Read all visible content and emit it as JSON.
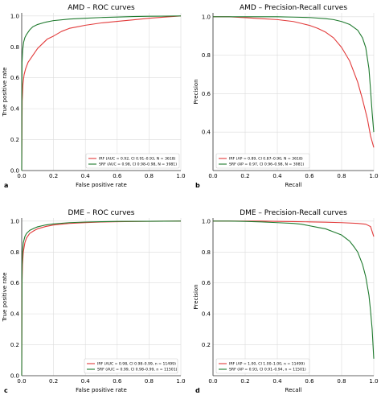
{
  "colors": {
    "red": "#e23b3b",
    "green": "#1f7a2e"
  },
  "chart_data": [
    {
      "panel": "a",
      "type": "line",
      "title": "AMD – ROC curves",
      "xlabel": "False positive rate",
      "ylabel": "True positive rate",
      "xlim": [
        0,
        1
      ],
      "ylim": [
        0,
        1.02
      ],
      "xticks": [
        "0.0",
        "0.2",
        "0.4",
        "0.6",
        "0.8",
        "1.0"
      ],
      "yticks": [
        "0.0",
        "0.2",
        "0.4",
        "0.6",
        "0.8",
        "1.0"
      ],
      "grid": true,
      "legend": "bottom-right",
      "series": [
        {
          "name": "IRF (AUC = 0.92, CI 0.91–0.93, N = 3618)",
          "color": "red",
          "x": [
            0,
            0.003,
            0.008,
            0.015,
            0.025,
            0.04,
            0.06,
            0.08,
            0.1,
            0.13,
            0.16,
            0.2,
            0.25,
            0.3,
            0.35,
            0.4,
            0.5,
            0.6,
            0.7,
            0.8,
            0.9,
            1.0
          ],
          "y": [
            0,
            0.45,
            0.56,
            0.62,
            0.66,
            0.7,
            0.73,
            0.76,
            0.79,
            0.82,
            0.85,
            0.87,
            0.9,
            0.92,
            0.93,
            0.94,
            0.955,
            0.965,
            0.975,
            0.985,
            0.993,
            1.0
          ]
        },
        {
          "name": "SRF (AUC = 0.98, CI 0.98–0.98, N = 3981)",
          "color": "green",
          "x": [
            0,
            0.002,
            0.006,
            0.012,
            0.02,
            0.03,
            0.05,
            0.07,
            0.1,
            0.15,
            0.2,
            0.3,
            0.4,
            0.5,
            0.6,
            0.7,
            0.8,
            0.9,
            1.0
          ],
          "y": [
            0,
            0.7,
            0.78,
            0.83,
            0.86,
            0.88,
            0.91,
            0.93,
            0.945,
            0.96,
            0.97,
            0.98,
            0.985,
            0.99,
            0.993,
            0.996,
            0.998,
            0.999,
            1.0
          ]
        }
      ]
    },
    {
      "panel": "b",
      "type": "line",
      "title": "AMD – Precision-Recall curves",
      "xlabel": "Recall",
      "ylabel": "Precision",
      "xlim": [
        0,
        1
      ],
      "ylim": [
        0.2,
        1.02
      ],
      "xticks": [
        "0.0",
        "0.2",
        "0.4",
        "0.6",
        "0.8",
        "1.0"
      ],
      "yticks": [
        "0.4",
        "0.6",
        "0.8",
        "1.0"
      ],
      "grid": true,
      "legend": "bottom-left",
      "series": [
        {
          "name": "IRF (AP = 0.89, CI 0.87–0.90, N = 3618)",
          "color": "red",
          "x": [
            0,
            0.1,
            0.2,
            0.3,
            0.4,
            0.5,
            0.55,
            0.6,
            0.65,
            0.7,
            0.75,
            0.8,
            0.85,
            0.9,
            0.93,
            0.96,
            0.98,
            1.0
          ],
          "y": [
            1.0,
            1.0,
            0.995,
            0.99,
            0.985,
            0.975,
            0.965,
            0.955,
            0.94,
            0.92,
            0.89,
            0.84,
            0.77,
            0.66,
            0.57,
            0.47,
            0.38,
            0.32
          ]
        },
        {
          "name": "SRF (AP = 0.97, CI 0.96–0.98, N = 3981)",
          "color": "green",
          "x": [
            0,
            0.1,
            0.2,
            0.3,
            0.4,
            0.5,
            0.6,
            0.7,
            0.75,
            0.8,
            0.85,
            0.9,
            0.93,
            0.95,
            0.97,
            0.98,
            0.99,
            1.0
          ],
          "y": [
            1.0,
            1.0,
            1.0,
            1.0,
            1.0,
            0.998,
            0.996,
            0.99,
            0.985,
            0.975,
            0.96,
            0.93,
            0.89,
            0.84,
            0.73,
            0.62,
            0.5,
            0.4
          ]
        }
      ]
    },
    {
      "panel": "c",
      "type": "line",
      "title": "DME – ROC curves",
      "xlabel": "False positive rate",
      "ylabel": "True positive rate",
      "xlim": [
        0,
        1
      ],
      "ylim": [
        0,
        1.02
      ],
      "xticks": [
        "0.0",
        "0.2",
        "0.4",
        "0.6",
        "0.8",
        "1.0"
      ],
      "yticks": [
        "0.0",
        "0.2",
        "0.4",
        "0.6",
        "0.8",
        "1.0"
      ],
      "grid": true,
      "legend": "bottom-right",
      "series": [
        {
          "name": "IRF (AUC = 0.98, CI 0.98–0.99, n = 11499)",
          "color": "red",
          "x": [
            0,
            0.002,
            0.005,
            0.01,
            0.02,
            0.03,
            0.05,
            0.08,
            0.1,
            0.15,
            0.2,
            0.3,
            0.4,
            0.5,
            0.6,
            0.8,
            1.0
          ],
          "y": [
            0,
            0.6,
            0.72,
            0.8,
            0.86,
            0.89,
            0.92,
            0.94,
            0.95,
            0.965,
            0.975,
            0.985,
            0.99,
            0.994,
            0.996,
            0.999,
            1.0
          ]
        },
        {
          "name": "SRF (AUC = 0.99, CI 0.98–0.99, n = 11501)",
          "color": "green",
          "x": [
            0,
            0.002,
            0.005,
            0.01,
            0.02,
            0.03,
            0.05,
            0.08,
            0.1,
            0.15,
            0.2,
            0.3,
            0.4,
            0.5,
            0.6,
            0.8,
            1.0
          ],
          "y": [
            0,
            0.7,
            0.8,
            0.86,
            0.9,
            0.92,
            0.94,
            0.955,
            0.963,
            0.975,
            0.982,
            0.99,
            0.994,
            0.996,
            0.998,
            0.999,
            1.0
          ]
        }
      ]
    },
    {
      "panel": "d",
      "type": "line",
      "title": "DME – Precision-Recall curves",
      "xlabel": "Recall",
      "ylabel": "Precision",
      "xlim": [
        0,
        1
      ],
      "ylim": [
        0.0,
        1.02
      ],
      "xticks": [
        "0.0",
        "0.2",
        "0.4",
        "0.6",
        "0.8",
        "1.0"
      ],
      "yticks": [
        "0.2",
        "0.4",
        "0.6",
        "0.8",
        "1.0"
      ],
      "grid": true,
      "legend": "bottom-left",
      "series": [
        {
          "name": "IRF (AP = 1.00, CI 1.00–1.00, n = 11499)",
          "color": "red",
          "x": [
            0,
            0.1,
            0.2,
            0.3,
            0.4,
            0.5,
            0.6,
            0.7,
            0.8,
            0.9,
            0.95,
            0.98,
            1.0
          ],
          "y": [
            1.0,
            1.0,
            1.0,
            1.0,
            0.998,
            0.997,
            0.995,
            0.993,
            0.99,
            0.985,
            0.98,
            0.965,
            0.9
          ]
        },
        {
          "name": "SRF (AP = 0.93, CI 0.91–0.94, n = 11501)",
          "color": "green",
          "x": [
            0,
            0.1,
            0.2,
            0.3,
            0.4,
            0.5,
            0.55,
            0.6,
            0.65,
            0.7,
            0.75,
            0.8,
            0.85,
            0.88,
            0.9,
            0.93,
            0.95,
            0.97,
            0.98,
            0.99,
            1.0
          ],
          "y": [
            1.0,
            1.0,
            0.998,
            0.995,
            0.99,
            0.985,
            0.98,
            0.97,
            0.96,
            0.95,
            0.93,
            0.91,
            0.87,
            0.83,
            0.8,
            0.72,
            0.64,
            0.52,
            0.42,
            0.3,
            0.11
          ]
        }
      ]
    }
  ]
}
